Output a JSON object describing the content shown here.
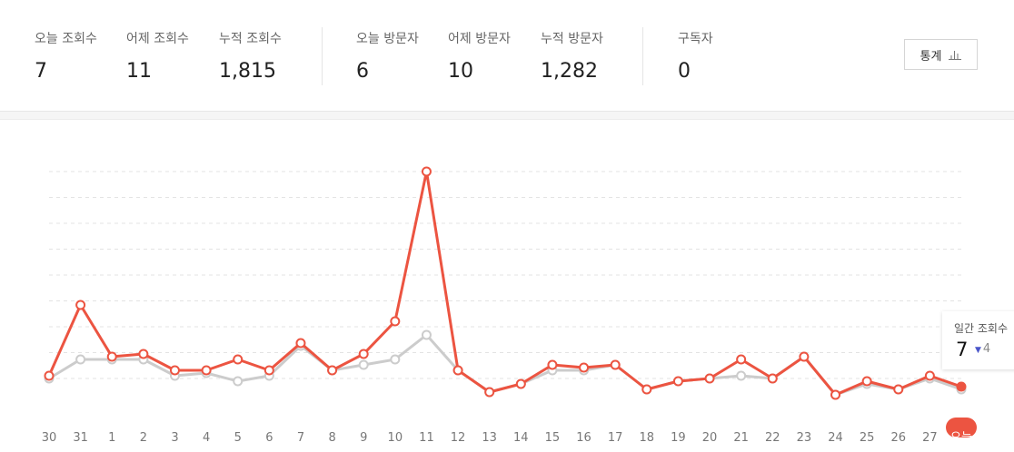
{
  "stats": [
    {
      "label": "오늘 조회수",
      "value": "7"
    },
    {
      "label": "어제 조회수",
      "value": "11"
    },
    {
      "label": "누적 조회수",
      "value": "1,815"
    },
    {
      "label": "오늘 방문자",
      "value": "6"
    },
    {
      "label": "어제 방문자",
      "value": "10"
    },
    {
      "label": "누적 방문자",
      "value": "1,282"
    },
    {
      "label": "구독자",
      "value": "0"
    }
  ],
  "stats_button": {
    "label": "통계",
    "icon": "bar-chart-icon"
  },
  "tooltip": {
    "title": "일간 조회수",
    "value": "7",
    "change": "4",
    "direction": "down"
  },
  "colors": {
    "views": "#ec5441",
    "visitors": "#cccccc",
    "today_badge": "#ec5441",
    "down": "#4a55c9"
  },
  "chart_data": {
    "type": "line",
    "categories": [
      "30",
      "31",
      "1",
      "2",
      "3",
      "4",
      "5",
      "6",
      "7",
      "8",
      "9",
      "10",
      "11",
      "12",
      "13",
      "14",
      "15",
      "16",
      "17",
      "18",
      "19",
      "20",
      "21",
      "22",
      "23",
      "24",
      "25",
      "26",
      "27",
      "오늘"
    ],
    "series": [
      {
        "name": "조회수",
        "values": [
          11,
          37,
          18,
          19,
          13,
          13,
          17,
          13,
          23,
          13,
          19,
          31,
          86,
          13,
          5,
          8,
          15,
          14,
          15,
          6,
          9,
          10,
          17,
          10,
          18,
          4,
          9,
          6,
          11,
          7
        ]
      },
      {
        "name": "방문자",
        "values": [
          10,
          17,
          17,
          17,
          11,
          12,
          9,
          11,
          22,
          13,
          15,
          17,
          26,
          13,
          5,
          8,
          13,
          13,
          15,
          6,
          9,
          10,
          11,
          10,
          18,
          4,
          8,
          6,
          10,
          6
        ]
      }
    ],
    "grid": true
  }
}
